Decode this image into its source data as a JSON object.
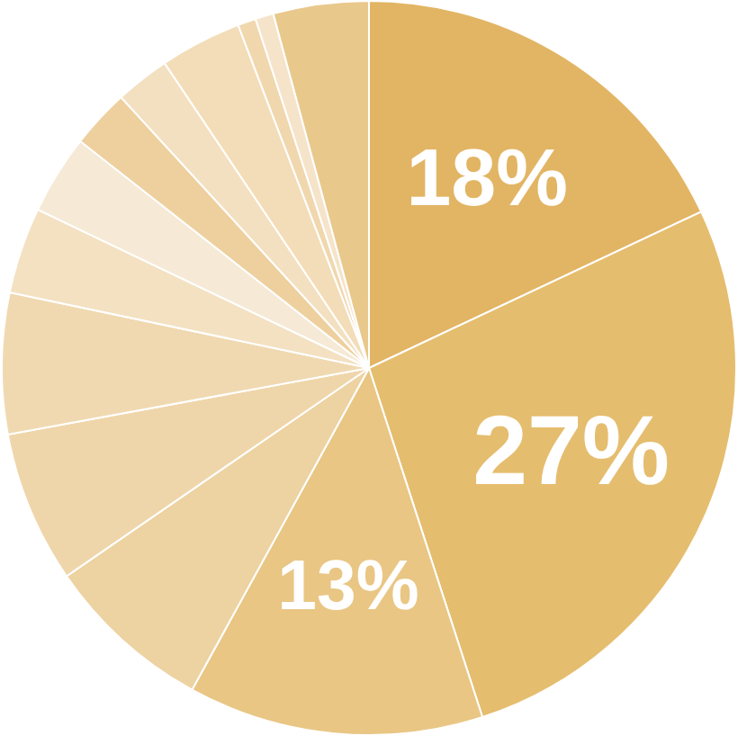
{
  "chart_data": {
    "type": "pie",
    "categories": [
      null,
      null,
      null,
      null,
      null,
      null,
      null,
      null,
      null,
      null,
      null,
      null,
      null,
      null
    ],
    "values": [
      18,
      27,
      13,
      7.4,
      6.7,
      6.2,
      3.8,
      3.5,
      2.6,
      2.4,
      3.6,
      0.8,
      0.8,
      4.2
    ],
    "value_labels": [
      "18%",
      "27%",
      "13%",
      null,
      null,
      null,
      null,
      null,
      null,
      null,
      null,
      null,
      null,
      null
    ],
    "colors": [
      "#e2b564",
      "#e5bd6e",
      "#e9c684",
      "#edd2a2",
      "#efd6aa",
      "#f0d9b1",
      "#f3e1c2",
      "#f6e9d6",
      "#edd09e",
      "#f3e0c1",
      "#f2ddb8",
      "#f0d7ae",
      "#f5e4ca",
      "#e9c88c"
    ]
  }
}
